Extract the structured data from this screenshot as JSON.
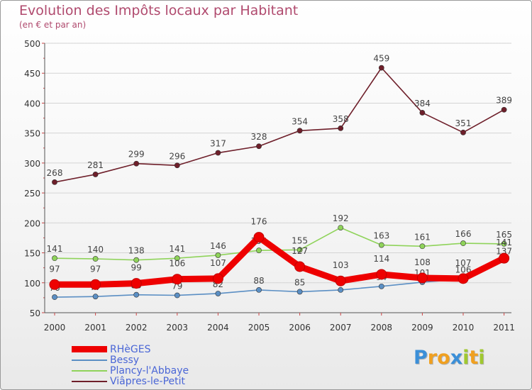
{
  "chart_data": {
    "type": "line",
    "title": "Evolution des Impôts locaux par Habitant",
    "subtitle": "(en € et par an)",
    "xlabel": "",
    "ylabel": "",
    "ylim": [
      50,
      500
    ],
    "yticks": [
      50,
      100,
      150,
      200,
      250,
      300,
      350,
      400,
      450,
      500
    ],
    "categories": [
      "2000",
      "2001",
      "2002",
      "2003",
      "2004",
      "2005",
      "2006",
      "2007",
      "2008",
      "2009",
      "2010",
      "2011"
    ],
    "series": [
      {
        "name": "Viâpres-le-Petit",
        "color": "#6e1f2a",
        "values": [
          268,
          281,
          299,
          296,
          317,
          328,
          354,
          358,
          459,
          384,
          351,
          389
        ]
      },
      {
        "name": "Plancy-l'Abbaye",
        "color": "#8fd35a",
        "values": [
          141,
          140,
          138,
          141,
          146,
          154,
          155,
          192,
          163,
          161,
          166,
          165
        ]
      },
      {
        "name": "Bessy",
        "color": "#5b8fc4",
        "values": [
          76,
          77,
          80,
          79,
          82,
          88,
          85,
          88,
          94,
          101,
          106,
          137
        ]
      },
      {
        "name": "RHèGES",
        "color": "#ee0000",
        "values": [
          97,
          97,
          99,
          106,
          107,
          176,
          127,
          103,
          114,
          108,
          107,
          141
        ]
      }
    ],
    "legend_position": "bottom-left"
  },
  "legend": [
    {
      "label": "RHèGES",
      "color": "#ee0000"
    },
    {
      "label": "Bessy",
      "color": "#5b8fc4"
    },
    {
      "label": "Plancy-l'Abbaye",
      "color": "#8fd35a"
    },
    {
      "label": "Viâpres-le-Petit",
      "color": "#6e1f2a"
    }
  ],
  "logo": {
    "letters": [
      "P",
      "r",
      "o",
      "x",
      "i",
      "t",
      "i"
    ],
    "colors": [
      "#3b8fd8",
      "#f0a020",
      "#f0a020",
      "#3b8fd8",
      "#a0c830",
      "#f0a020",
      "#a0c830"
    ]
  }
}
